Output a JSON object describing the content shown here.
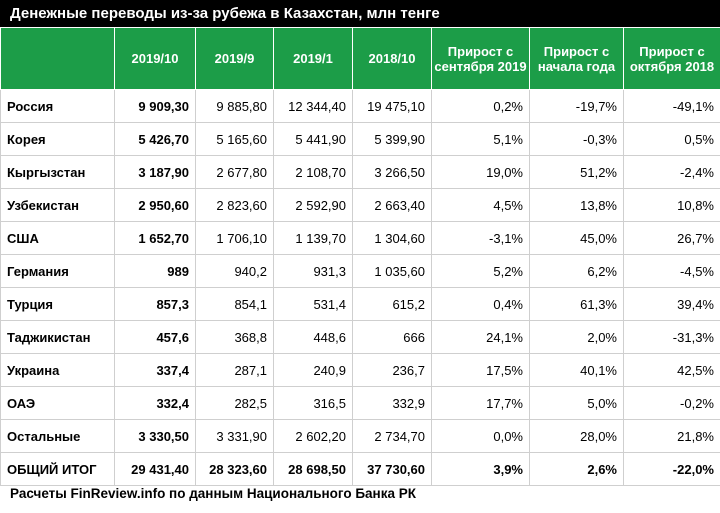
{
  "title": "Денежные переводы из-за рубежа в Казахстан, млн тенге",
  "headers": [
    "",
    "2019/10",
    "2019/9",
    "2019/1",
    "2018/10",
    "Прирост с сентября 2019",
    "Прирост с начала года",
    "Прирост с октября 2018"
  ],
  "rows": [
    [
      "Россия",
      "9 909,30",
      "9 885,80",
      "12 344,40",
      "19 475,10",
      "0,2%",
      "-19,7%",
      "-49,1%"
    ],
    [
      "Корея",
      "5 426,70",
      "5 165,60",
      "5 441,90",
      "5 399,90",
      "5,1%",
      "-0,3%",
      "0,5%"
    ],
    [
      "Кыргызстан",
      "3 187,90",
      "2 677,80",
      "2 108,70",
      "3 266,50",
      "19,0%",
      "51,2%",
      "-2,4%"
    ],
    [
      "Узбекистан",
      "2 950,60",
      "2 823,60",
      "2 592,90",
      "2 663,40",
      "4,5%",
      "13,8%",
      "10,8%"
    ],
    [
      "США",
      "1 652,70",
      "1 706,10",
      "1 139,70",
      "1 304,60",
      "-3,1%",
      "45,0%",
      "26,7%"
    ],
    [
      "Германия",
      "989",
      "940,2",
      "931,3",
      "1 035,60",
      "5,2%",
      "6,2%",
      "-4,5%"
    ],
    [
      "Турция",
      "857,3",
      "854,1",
      "531,4",
      "615,2",
      "0,4%",
      "61,3%",
      "39,4%"
    ],
    [
      "Таджикистан",
      "457,6",
      "368,8",
      "448,6",
      "666",
      "24,1%",
      "2,0%",
      "-31,3%"
    ],
    [
      "Украина",
      "337,4",
      "287,1",
      "240,9",
      "236,7",
      "17,5%",
      "40,1%",
      "42,5%"
    ],
    [
      "ОАЭ",
      "332,4",
      "282,5",
      "316,5",
      "332,9",
      "17,7%",
      "5,0%",
      "-0,2%"
    ],
    [
      "Остальные",
      "3 330,50",
      "3 331,90",
      "2 602,20",
      "2 734,70",
      "0,0%",
      "28,0%",
      "21,8%"
    ],
    [
      "ОБЩИЙ ИТОГ",
      "29 431,40",
      "28 323,60",
      "28 698,50",
      "37 730,60",
      "3,9%",
      "2,6%",
      "-22,0%"
    ]
  ],
  "footer": "Расчеты FinReview.info по данным Национального Банка РК",
  "colors": {
    "header_green": "#1c9d48",
    "title_bg": "#000000"
  }
}
